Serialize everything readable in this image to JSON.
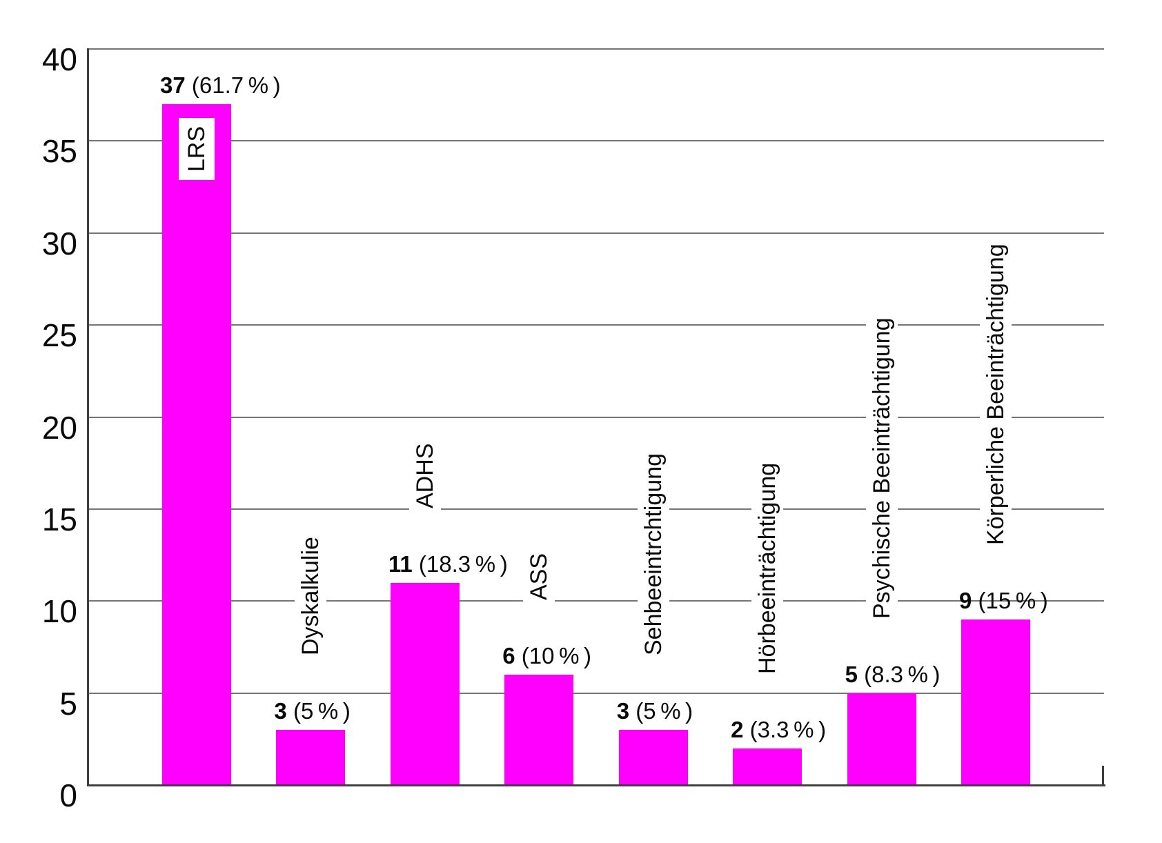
{
  "background_color": "#ffffff",
  "chart_data": {
    "type": "bar",
    "title": "",
    "categories": [
      "LRS",
      "Dyskalkulie",
      "ADHS",
      "ASS",
      "Sehbeeintrchtigung",
      "Hörbeeinträchtigung",
      "Psychische Beeinträchtigung",
      "Körperliche Beeinträchtigung"
    ],
    "values": [
      37,
      3,
      11,
      6,
      3,
      2,
      5,
      9
    ],
    "percent_labels": [
      "(61.7 % )",
      "(5 % )",
      "(18.3 % )",
      "(10 % )",
      "(5 % )",
      "(3.3 % )",
      "(8.3 % )",
      "(15 % )"
    ],
    "value_label_texts": [
      "37 (61.7 %)",
      "3 (5 %)",
      "11 (18.3 %)",
      "6 (10 %)",
      "3 (5 %)",
      "2 (3.3 %)",
      "5 (8.3 %)",
      "9 (15 %)"
    ],
    "category_label_rotation_deg": 90,
    "first_category_label_inside_bar": true,
    "bar_color": "#ff00ff",
    "grid": "horizontal",
    "gridline_color": "#757575",
    "axis_color": "#3f3f3f",
    "text_color": "#0a0a0a",
    "xlabel": "",
    "ylabel": "",
    "ylim": [
      0,
      40
    ],
    "yticks": [
      0,
      5,
      10,
      15,
      20,
      25,
      30,
      35,
      40
    ],
    "legend": "none"
  }
}
